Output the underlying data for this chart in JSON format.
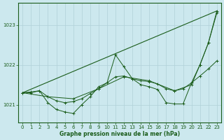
{
  "xlabel": "Graphe pression niveau de la mer (hPa)",
  "background_color": "#cce8ee",
  "grid_color": "#b0d0d8",
  "line_color": "#1a5c1a",
  "xlim": [
    -0.5,
    23.5
  ],
  "ylim": [
    1020.55,
    1023.55
  ],
  "yticks": [
    1021,
    1022,
    1023
  ],
  "xticks": [
    0,
    1,
    2,
    3,
    4,
    5,
    6,
    7,
    8,
    9,
    10,
    11,
    12,
    13,
    14,
    15,
    16,
    17,
    18,
    19,
    20,
    21,
    22,
    23
  ],
  "series_detailed": {
    "x": [
      0,
      1,
      2,
      3,
      4,
      5,
      6,
      7,
      8,
      9,
      10,
      11,
      12,
      13,
      14,
      15,
      16,
      17,
      18,
      19,
      20,
      21,
      22,
      23
    ],
    "y": [
      1021.3,
      1021.3,
      1021.35,
      1021.05,
      1020.88,
      1020.82,
      1020.78,
      1021.0,
      1021.2,
      1021.45,
      1021.55,
      1022.25,
      1021.95,
      1021.65,
      1021.5,
      1021.45,
      1021.38,
      1021.05,
      1021.02,
      1021.02,
      1021.55,
      1022.0,
      1022.55,
      1023.3
    ]
  },
  "series_smooth": {
    "x": [
      0,
      1,
      2,
      3,
      4,
      5,
      6,
      7,
      8,
      9,
      10,
      11,
      12,
      13,
      14,
      15,
      16,
      17,
      18,
      19,
      20,
      21,
      22,
      23
    ],
    "y": [
      1021.3,
      1021.32,
      1021.35,
      1021.2,
      1021.1,
      1021.05,
      1021.08,
      1021.15,
      1021.28,
      1021.4,
      1021.55,
      1021.7,
      1021.72,
      1021.65,
      1021.6,
      1021.58,
      1021.52,
      1021.4,
      1021.35,
      1021.4,
      1021.55,
      1021.72,
      1021.9,
      1022.1
    ]
  },
  "series_rising": {
    "x": [
      0,
      3,
      6,
      9,
      12,
      15,
      18,
      20,
      21,
      22,
      23
    ],
    "y": [
      1021.3,
      1021.2,
      1021.15,
      1021.4,
      1021.7,
      1021.6,
      1021.35,
      1021.5,
      1022.0,
      1022.55,
      1023.35
    ]
  },
  "line_diagonal": {
    "x": [
      0,
      23
    ],
    "y": [
      1021.3,
      1023.35
    ]
  }
}
